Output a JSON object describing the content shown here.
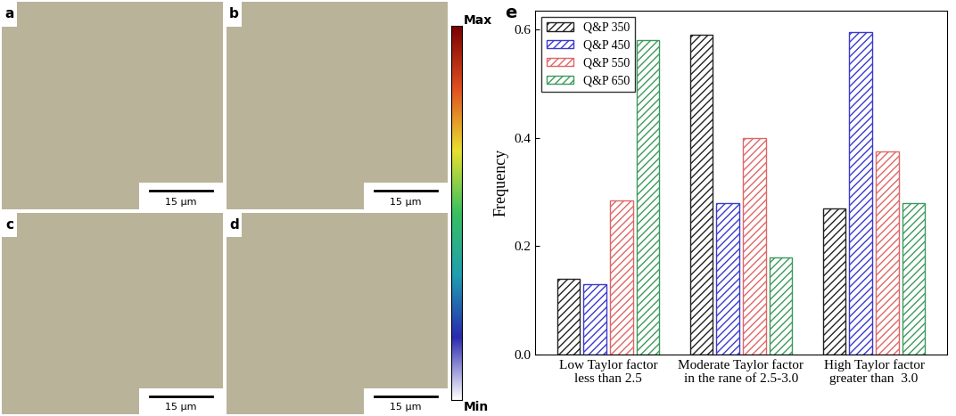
{
  "chart_data": {
    "type": "bar",
    "panel_label": "e",
    "y_label": "Frequency",
    "categories": [
      "Low Taylor factor\nless than 2.5",
      "Moderate Taylor factor\nin the rane of 2.5-3.0",
      "High Taylor factor\ngreater than  3.0"
    ],
    "series": [
      {
        "name": "Q&P 350",
        "color": "#222222",
        "values": [
          0.14,
          0.59,
          0.27
        ]
      },
      {
        "name": "Q&P 450",
        "color": "#3a3ad0",
        "values": [
          0.13,
          0.28,
          0.595
        ]
      },
      {
        "name": "Q&P 550",
        "color": "#e06666",
        "values": [
          0.285,
          0.4,
          0.375
        ]
      },
      {
        "name": "Q&P 650",
        "color": "#3c9a5c",
        "values": [
          0.58,
          0.18,
          0.28
        ]
      }
    ],
    "ylim": [
      0,
      0.635
    ],
    "yticks": [
      {
        "value": 0,
        "label": "0.0"
      },
      {
        "value": 0.2,
        "label": "0.2"
      },
      {
        "value": 0.4,
        "label": "0.4"
      },
      {
        "value": 0.6,
        "label": "0.6"
      }
    ],
    "legend": "upper left"
  },
  "maps": {
    "panels": [
      {
        "label": "a",
        "scale_bar": "15 μm"
      },
      {
        "label": "b",
        "scale_bar": "15 μm"
      },
      {
        "label": "c",
        "scale_bar": "15 μm"
      },
      {
        "label": "d",
        "scale_bar": "15 μm"
      }
    ],
    "colorbar": {
      "max_label": "Max",
      "min_label": "Min"
    }
  }
}
